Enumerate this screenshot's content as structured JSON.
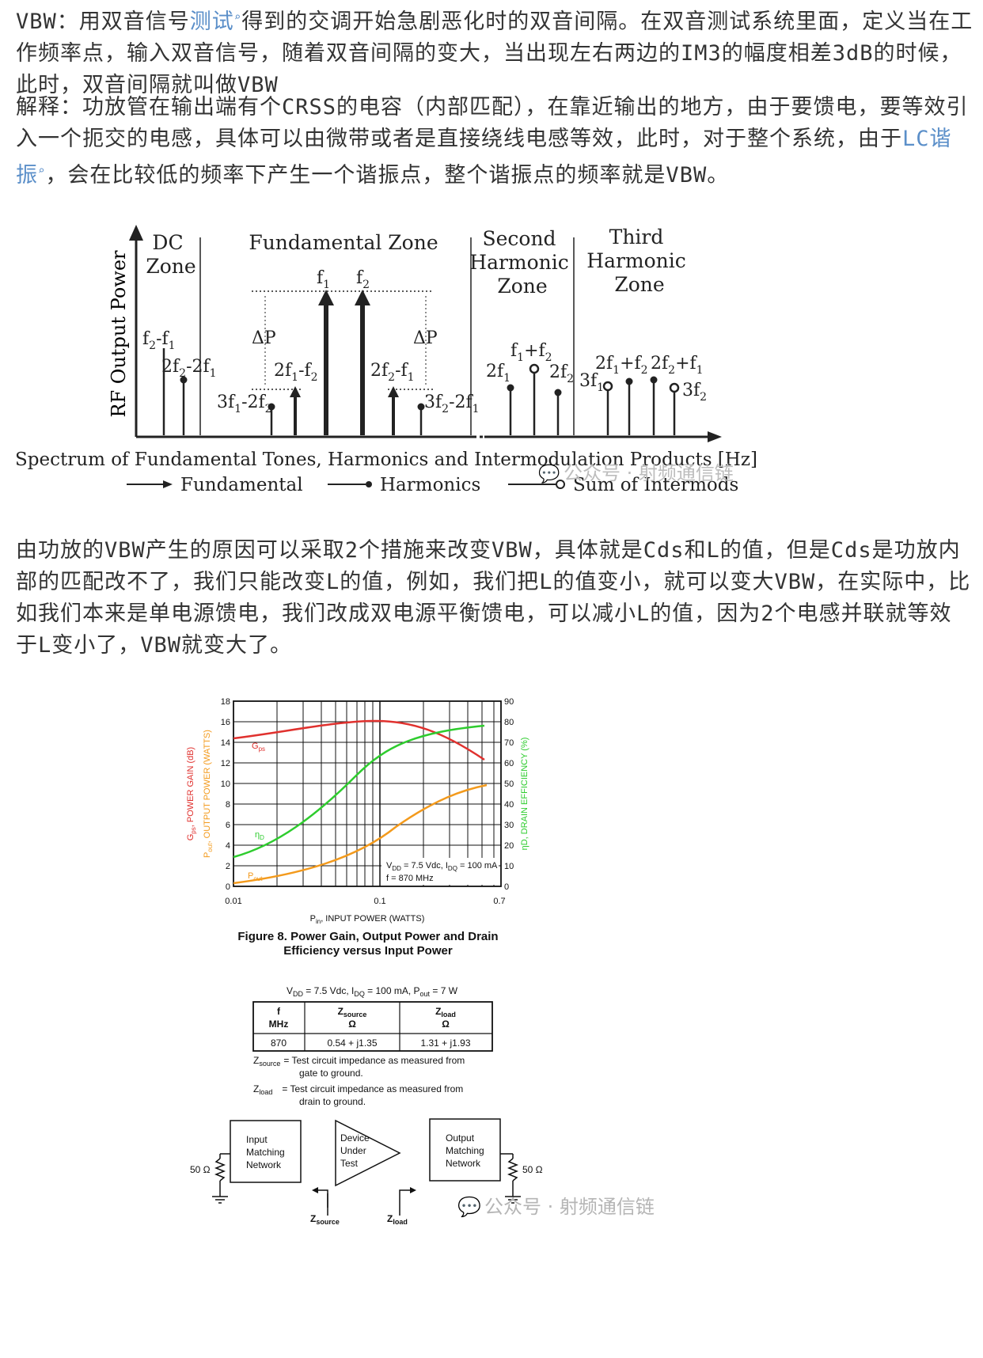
{
  "text": {
    "p1_a": "VBW：用双音信号",
    "p1_kw": "测试",
    "p1_b": "得到的交调开始急剧恶化时的双音间隔。在双音测试系统里面，定义当在工作频率点，输入双音信号，随着双音间隔的变大，当出现左右两边的IM3的幅度相差3dB的时候，此时，双音间隔就叫做VBW",
    "p2_a": "解释：功放管在输出端有个CRSS的电容（内部匹配），在靠近输出的地方，由于要馈电，要等效引入一个扼交的电感，具体可以由微带或者是直接绕线电感等效，此时，对于整个系统，由于",
    "p2_kw": "LC谐振",
    "p2_b": "，会在比较低的频率下产生一个谐振点，整个谐振点的频率就是VBW。",
    "p3": "由功放的VBW产生的原因可以采取2个措施来改变VBW，具体就是Cds和L的值，但是Cds是功放内部的匹配改不了，我们只能改变L的值，例如，我们把L的值变小，就可以变大VBW，在实际中，比如我们本来是单电源馈电，我们改成双电源平衡馈电，可以减小L的值，因为2个电感并联就等效于L变小了，VBW就变大了。"
  },
  "figure1": {
    "y_axis_label": "RF Output Power",
    "x_axis_label": "Spectrum of Fundamental Tones, Harmonics and Intermodulation Products [Hz]",
    "zones": {
      "dc": [
        "DC",
        "Zone"
      ],
      "fundamental": "Fundamental Zone",
      "second": [
        "Second",
        "Harmonic",
        "Zone"
      ],
      "third": [
        "Third",
        "Harmonic",
        "Zone"
      ]
    },
    "labels": {
      "f1": "f",
      "f2": "f",
      "dc1": "f",
      "dc2": "2f",
      "imd_l3": "3f",
      "imd_l2": "2f",
      "imd_r2": "2f",
      "imd_r3": "3f",
      "dp": "ΔP",
      "h2_1": "2f",
      "h2_sum": "f",
      "h2_2": "2f",
      "h3_1": "3f",
      "h3_a": "2f",
      "h3_b": "2f",
      "h3_2": "3f"
    },
    "legend": [
      "Fundamental",
      "Harmonics",
      "Sum of Intermods"
    ]
  },
  "figure2": {
    "left_ticks": [
      "18",
      "16",
      "14",
      "12",
      "10",
      "8",
      "6",
      "4",
      "2",
      "0"
    ],
    "right_ticks": [
      "90",
      "80",
      "70",
      "60",
      "50",
      "40",
      "30",
      "20",
      "10",
      "0"
    ],
    "x_ticks": [
      "0.01",
      "0.1",
      "0.7"
    ],
    "left_label_1": "G",
    "left_label_1_sub": "ps",
    "left_label_1b": ", POWER GAIN (dB)",
    "left_label_2": "P",
    "left_label_2_sub": "out",
    "left_label_2b": ", OUTPUT POWER (WATTS)",
    "right_label": "ηD, DRAIN EFFICIENCY (%)",
    "x_label": "P",
    "x_label_sub": "in",
    "x_label_b": ", INPUT POWER (WATTS)",
    "series": {
      "gps": "G",
      "gps_sub": "ps",
      "eta": "η",
      "eta_sub": "D",
      "pout": "P",
      "pout_sub": "out"
    },
    "conditions_1": "V",
    "conditions_1_sub": "DD",
    "conditions_1b": " = 7.5 Vdc, I",
    "conditions_1_sub2": "DQ",
    "conditions_1c": " = 100 mA",
    "conditions_2": "f = 870 MHz",
    "caption_1": "Figure 8. Power Gain, Output Power and Drain",
    "caption_2": "Efficiency versus Input Power"
  },
  "figure3": {
    "title_a": "V",
    "title_sub1": "DD",
    "title_b": " = 7.5 Vdc, I",
    "title_sub2": "DQ",
    "title_c": " = 100 mA, P",
    "title_sub3": "out",
    "title_d": " = 7 W",
    "headers": [
      [
        "f",
        "MHz"
      ],
      [
        "Z",
        "source",
        "Ω"
      ],
      [
        "Z",
        "load",
        "Ω"
      ]
    ],
    "row": [
      "870",
      "0.54 + j1.35",
      "1.31 + j1.93"
    ],
    "note1_sym": "Z",
    "note1_sub": "source",
    "note1_text_1": "=  Test circuit impedance as measured from",
    "note1_text_2": "gate to ground.",
    "note2_sym": "Z",
    "note2_sub": "load",
    "note2_text_1": "=  Test circuit impedance as measured from",
    "note2_text_2": "drain to ground.",
    "blocks": {
      "input": [
        "Input",
        "Matching",
        "Network"
      ],
      "dut": [
        "Device",
        "Under",
        "Test"
      ],
      "output": [
        "Output",
        "Matching",
        "Network"
      ]
    },
    "ohm_left": "50 Ω",
    "ohm_right": "50 Ω",
    "zsource": "Z",
    "zsource_sub": "source",
    "zload": "Z",
    "zload_sub": "load"
  },
  "watermark": "公众号 · 射频通信链"
}
